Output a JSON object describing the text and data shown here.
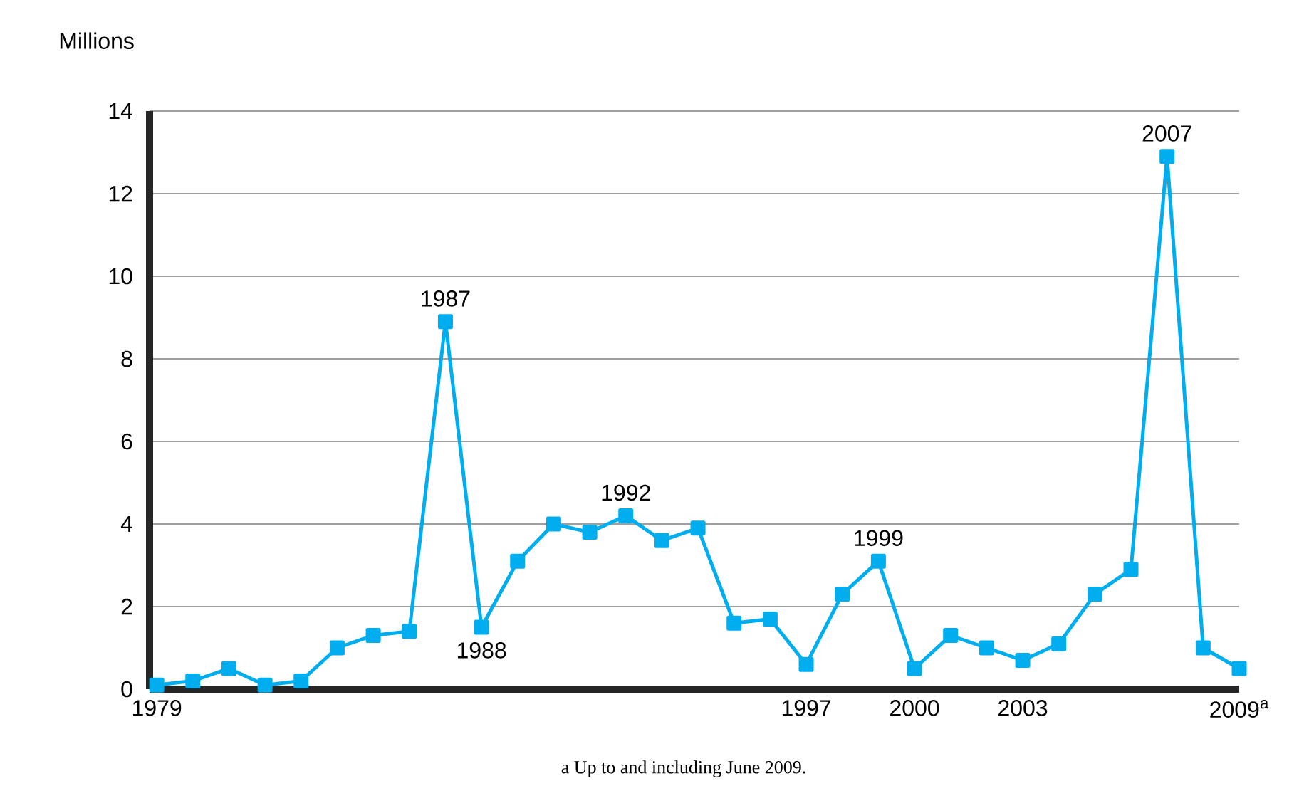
{
  "chart_data": {
    "type": "line",
    "ylabel": "Millions",
    "x": [
      1979,
      1980,
      1981,
      1982,
      1983,
      1984,
      1985,
      1986,
      1987,
      1988,
      1989,
      1990,
      1991,
      1992,
      1993,
      1994,
      1995,
      1996,
      1997,
      1998,
      1999,
      2000,
      2001,
      2002,
      2003,
      2004,
      2005,
      2006,
      2007,
      2008,
      2009
    ],
    "series": [
      {
        "color": "#00aeef",
        "values": [
          0.1,
          0.2,
          0.5,
          0.1,
          0.2,
          1.0,
          1.3,
          1.4,
          8.9,
          1.5,
          3.1,
          4.0,
          3.8,
          4.2,
          3.6,
          3.9,
          1.6,
          1.7,
          0.6,
          2.3,
          3.1,
          0.5,
          1.3,
          1.0,
          0.7,
          1.1,
          2.3,
          2.9,
          12.9,
          1.0,
          0.5
        ]
      }
    ],
    "xlim": [
      1978.8,
      2009
    ],
    "xticks": [
      1979,
      1997,
      2000,
      2003,
      {
        "value": 2009,
        "label": "2009$^{a}$"
      }
    ],
    "ylim": [
      0,
      14
    ],
    "yticks": [
      0,
      2,
      4,
      6,
      8,
      10,
      12,
      14
    ],
    "grid": "y",
    "marker": "square",
    "line_style": "solid",
    "annotations": [
      {
        "text": "1987",
        "x": 1987,
        "y": 8.9
      },
      {
        "text": "1988",
        "x": 1988,
        "y": 1.5
      },
      {
        "text": "1992",
        "x": 1992,
        "y": 4.2
      },
      {
        "text": "1999",
        "x": 1999,
        "y": 3.1
      },
      {
        "text": "2007",
        "x": 2007,
        "y": 12.9
      },
      "a    Up to and including June 2009."
    ]
  }
}
